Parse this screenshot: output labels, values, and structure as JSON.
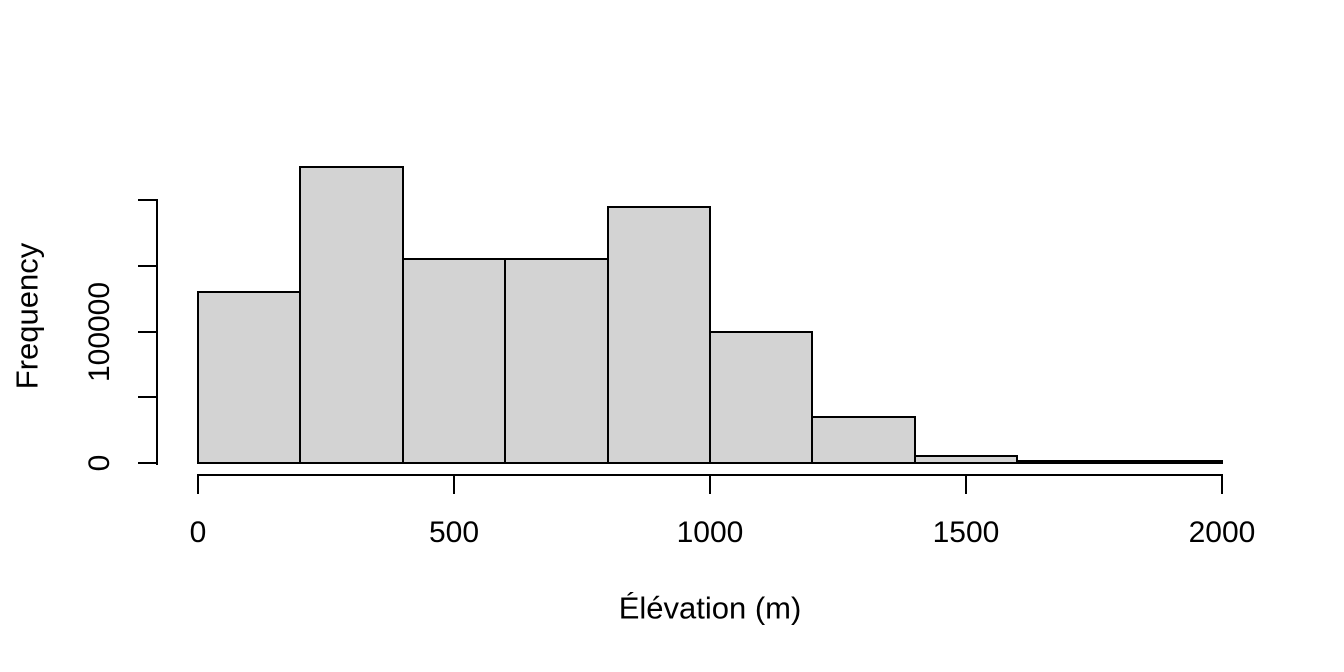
{
  "figure": {
    "background": "#ffffff",
    "bar_fill": "#d3d3d3",
    "bar_border": "#000000",
    "axis_color": "#000000",
    "text_color": "#000000"
  },
  "chart_data": {
    "type": "bar",
    "chart_kind": "histogram",
    "title": "",
    "xlabel": "Élévation (m)",
    "ylabel": "Frequency",
    "bin_edges": [
      0,
      200,
      400,
      600,
      800,
      1000,
      1200,
      1400,
      1600,
      1800,
      2000
    ],
    "counts": [
      130000,
      225000,
      155000,
      155000,
      195000,
      100000,
      35000,
      5500,
      2000,
      500
    ],
    "xlim": [
      0,
      2000
    ],
    "ylim": [
      0,
      225000
    ],
    "grid": false,
    "legend": null,
    "xticks": [
      {
        "value": 0,
        "label": "0"
      },
      {
        "value": 500,
        "label": "500"
      },
      {
        "value": 1000,
        "label": "1000"
      },
      {
        "value": 1500,
        "label": "1500"
      },
      {
        "value": 2000,
        "label": "2000"
      }
    ],
    "yticks": [
      {
        "value": 0,
        "label": "0"
      },
      {
        "value": 50000,
        "label": ""
      },
      {
        "value": 100000,
        "label": "100000"
      },
      {
        "value": 150000,
        "label": ""
      },
      {
        "value": 200000,
        "label": ""
      }
    ]
  }
}
